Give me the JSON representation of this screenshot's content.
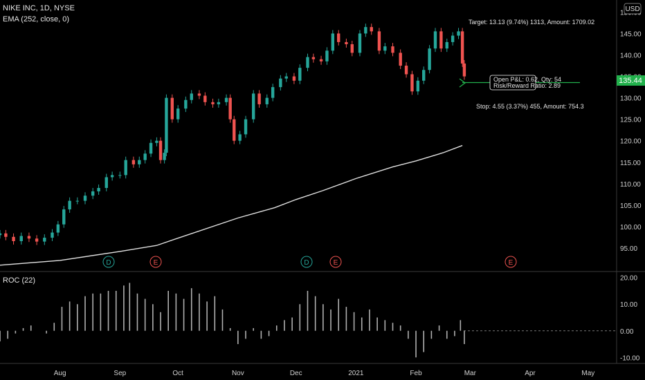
{
  "header": {
    "symbol": "NIKE INC, 1D, NYSE",
    "ema_label": "EMA (252, close, 0)",
    "currency": "USD"
  },
  "roc_label": "ROC (22)",
  "position": {
    "target_text": "Target: 13.13 (9.74%) 1313, Amount: 1709.02",
    "stop_text": "Stop: 4.55 (3.37%) 455, Amount: 754.3",
    "open_pnl_text": "Open P&L: 0.62, Qty: 54",
    "risk_reward_text": "Risk/Reward Ratio: 2.89",
    "last_price_label": "135.44"
  },
  "colors": {
    "up": "#26a69a",
    "down": "#ef5350",
    "ema": "#e0e0e0",
    "roc": "#b0b0b0",
    "position_line": "#22b14c",
    "dividend_badge": "#26a69a",
    "earnings_badge": "#ef5350"
  },
  "chart_data": [
    {
      "type": "candlestick",
      "title": "NIKE INC, 1D, NYSE",
      "ylim": [
        90,
        152
      ],
      "y_ticks": [
        "95.00",
        "100.00",
        "105.00",
        "110.00",
        "115.00",
        "120.00",
        "125.00",
        "130.00",
        "135.00",
        "140.00",
        "145.00",
        "150.00"
      ],
      "x_ticks": [
        "Aug",
        "Sep",
        "Oct",
        "Nov",
        "Dec",
        "2021",
        "Feb",
        "Mar",
        "Apr",
        "May"
      ],
      "x_range": [
        "2020-07-01",
        "2021-05-10"
      ],
      "series": [
        {
          "name": "EMA (252, close, 0)",
          "type": "line",
          "points": [
            [
              "2020-07-01",
              91.0
            ],
            [
              "2020-08-01",
              92.1
            ],
            [
              "2020-09-01",
              94.2
            ],
            [
              "2020-09-20",
              95.6
            ],
            [
              "2020-10-01",
              97.3
            ],
            [
              "2020-11-01",
              102.0
            ],
            [
              "2020-11-20",
              104.4
            ],
            [
              "2020-12-01",
              106.3
            ],
            [
              "2020-12-15",
              108.4
            ],
            [
              "2021-01-01",
              111.2
            ],
            [
              "2021-01-20",
              113.9
            ],
            [
              "2021-02-01",
              115.3
            ],
            [
              "2021-02-15",
              117.2
            ],
            [
              "2021-02-25",
              118.9
            ]
          ]
        },
        {
          "name": "close",
          "type": "candles",
          "points": [
            [
              "2020-07-01",
              98.4
            ],
            [
              "2020-07-04",
              97.6
            ],
            [
              "2020-07-08",
              96.6
            ],
            [
              "2020-07-12",
              97.8
            ],
            [
              "2020-07-16",
              97.2
            ],
            [
              "2020-07-20",
              96.5
            ],
            [
              "2020-07-24",
              97.4
            ],
            [
              "2020-07-28",
              98.6
            ],
            [
              "2020-07-31",
              100.5
            ],
            [
              "2020-08-03",
              104.0
            ],
            [
              "2020-08-06",
              106.0
            ],
            [
              "2020-08-10",
              106.0
            ],
            [
              "2020-08-14",
              107.2
            ],
            [
              "2020-08-18",
              108.2
            ],
            [
              "2020-08-21",
              109.0
            ],
            [
              "2020-08-25",
              111.5
            ],
            [
              "2020-08-28",
              112.0
            ],
            [
              "2020-09-01",
              112.0
            ],
            [
              "2020-09-04",
              115.5
            ],
            [
              "2020-09-08",
              114.5
            ],
            [
              "2020-09-11",
              115.5
            ],
            [
              "2020-09-14",
              117.0
            ],
            [
              "2020-09-17",
              119.5
            ],
            [
              "2020-09-20",
              120.0
            ],
            [
              "2020-09-22",
              115.5
            ],
            [
              "2020-09-24",
              117.2
            ],
            [
              "2020-09-25",
              130.0
            ],
            [
              "2020-09-28",
              125.0
            ],
            [
              "2020-10-01",
              127.5
            ],
            [
              "2020-10-05",
              129.5
            ],
            [
              "2020-10-08",
              131.0
            ],
            [
              "2020-10-12",
              130.5
            ],
            [
              "2020-10-15",
              129.0
            ],
            [
              "2020-10-19",
              128.5
            ],
            [
              "2020-10-22",
              129.0
            ],
            [
              "2020-10-26",
              130.0
            ],
            [
              "2020-10-28",
              125.0
            ],
            [
              "2020-10-30",
              120.0
            ],
            [
              "2020-11-02",
              121.5
            ],
            [
              "2020-11-05",
              125.0
            ],
            [
              "2020-11-09",
              131.0
            ],
            [
              "2020-11-12",
              128.5
            ],
            [
              "2020-11-16",
              130.0
            ],
            [
              "2020-11-19",
              132.5
            ],
            [
              "2020-11-23",
              134.5
            ],
            [
              "2020-11-26",
              135.0
            ],
            [
              "2020-11-30",
              134.0
            ],
            [
              "2020-12-03",
              137.0
            ],
            [
              "2020-12-07",
              139.5
            ],
            [
              "2020-12-10",
              139.0
            ],
            [
              "2020-12-14",
              138.5
            ],
            [
              "2020-12-17",
              141.0
            ],
            [
              "2020-12-20",
              145.0
            ],
            [
              "2020-12-23",
              143.0
            ],
            [
              "2020-12-27",
              142.5
            ],
            [
              "2020-12-30",
              140.5
            ],
            [
              "2021-01-03",
              145.0
            ],
            [
              "2021-01-06",
              146.5
            ],
            [
              "2021-01-09",
              145.5
            ],
            [
              "2021-01-13",
              141.0
            ],
            [
              "2021-01-16",
              142.0
            ],
            [
              "2021-01-20",
              140.5
            ],
            [
              "2021-01-24",
              137.5
            ],
            [
              "2021-01-27",
              135.5
            ],
            [
              "2021-01-30",
              131.5
            ],
            [
              "2021-02-02",
              134.0
            ],
            [
              "2021-02-05",
              136.5
            ],
            [
              "2021-02-08",
              141.5
            ],
            [
              "2021-02-11",
              145.5
            ],
            [
              "2021-02-14",
              141.5
            ],
            [
              "2021-02-17",
              143.0
            ],
            [
              "2021-02-20",
              144.5
            ],
            [
              "2021-02-23",
              145.5
            ],
            [
              "2021-02-25",
              138.0
            ],
            [
              "2021-02-26",
              135.0
            ]
          ]
        }
      ]
    },
    {
      "type": "bar",
      "title": "ROC (22)",
      "ylim": [
        -12,
        22
      ],
      "y_ticks": [
        "20.00",
        "10.00",
        "0.00",
        "-10.00"
      ],
      "series": [
        {
          "name": "ROC (22)",
          "points": [
            [
              "2020-07-01",
              -4
            ],
            [
              "2020-07-05",
              -3
            ],
            [
              "2020-07-09",
              -1
            ],
            [
              "2020-07-13",
              1
            ],
            [
              "2020-07-17",
              2
            ],
            [
              "2020-07-21",
              0
            ],
            [
              "2020-07-25",
              -1
            ],
            [
              "2020-07-29",
              3
            ],
            [
              "2020-08-02",
              9
            ],
            [
              "2020-08-06",
              11
            ],
            [
              "2020-08-10",
              10
            ],
            [
              "2020-08-14",
              13
            ],
            [
              "2020-08-18",
              14
            ],
            [
              "2020-08-22",
              14
            ],
            [
              "2020-08-26",
              15
            ],
            [
              "2020-08-30",
              15
            ],
            [
              "2020-09-03",
              17
            ],
            [
              "2020-09-06",
              18
            ],
            [
              "2020-09-10",
              14
            ],
            [
              "2020-09-14",
              12
            ],
            [
              "2020-09-18",
              10
            ],
            [
              "2020-09-22",
              7
            ],
            [
              "2020-09-26",
              15
            ],
            [
              "2020-09-30",
              14
            ],
            [
              "2020-10-04",
              12
            ],
            [
              "2020-10-08",
              16
            ],
            [
              "2020-10-12",
              14
            ],
            [
              "2020-10-16",
              11
            ],
            [
              "2020-10-20",
              13
            ],
            [
              "2020-10-24",
              8
            ],
            [
              "2020-10-28",
              1
            ],
            [
              "2020-11-01",
              -5
            ],
            [
              "2020-11-05",
              -3
            ],
            [
              "2020-11-09",
              1
            ],
            [
              "2020-11-13",
              -3
            ],
            [
              "2020-11-17",
              -2
            ],
            [
              "2020-11-21",
              2
            ],
            [
              "2020-11-25",
              4
            ],
            [
              "2020-11-29",
              5
            ],
            [
              "2020-12-03",
              10
            ],
            [
              "2020-12-07",
              15
            ],
            [
              "2020-12-11",
              13
            ],
            [
              "2020-12-15",
              10
            ],
            [
              "2020-12-19",
              8
            ],
            [
              "2020-12-23",
              12
            ],
            [
              "2020-12-27",
              9
            ],
            [
              "2020-12-31",
              7
            ],
            [
              "2021-01-04",
              5
            ],
            [
              "2021-01-08",
              8
            ],
            [
              "2021-01-12",
              5
            ],
            [
              "2021-01-16",
              4
            ],
            [
              "2021-01-20",
              3
            ],
            [
              "2021-01-24",
              2
            ],
            [
              "2021-01-28",
              -3
            ],
            [
              "2021-02-01",
              -10
            ],
            [
              "2021-02-05",
              -8
            ],
            [
              "2021-02-09",
              -3
            ],
            [
              "2021-02-13",
              2
            ],
            [
              "2021-02-17",
              -3
            ],
            [
              "2021-02-21",
              -2
            ],
            [
              "2021-02-24",
              4
            ],
            [
              "2021-02-26",
              -5
            ]
          ]
        }
      ]
    }
  ]
}
